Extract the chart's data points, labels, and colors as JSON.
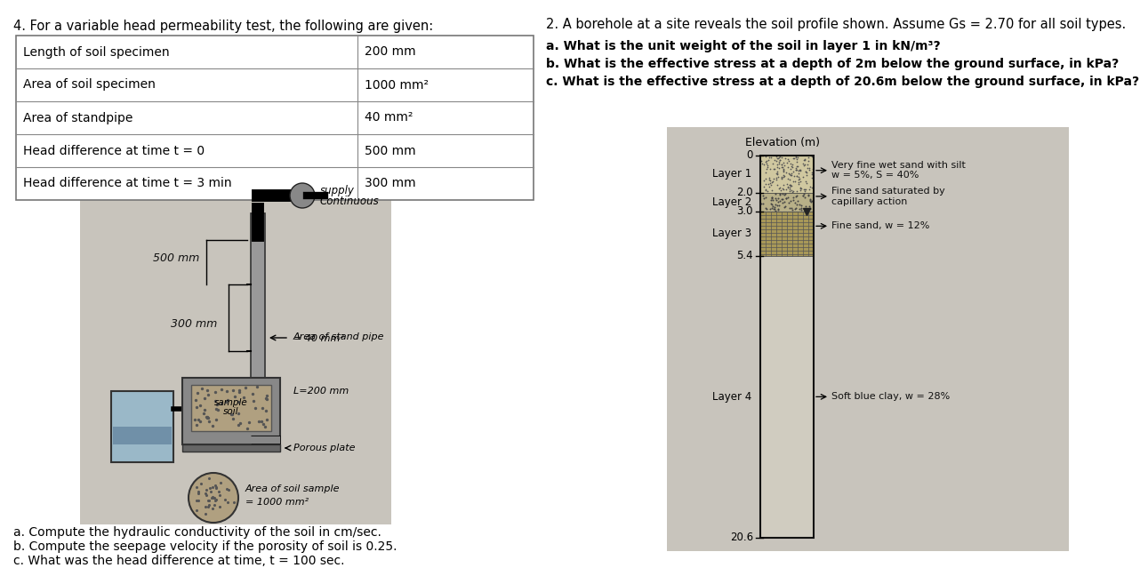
{
  "title_left": "4. For a variable head permeability test, the following are given:",
  "title_right": "2. A borehole at a site reveals the soil profile shown. Assume Gs = 2.70 for all soil types.",
  "table_rows": [
    [
      "Length of soil specimen",
      "200 mm"
    ],
    [
      "Area of soil specimen",
      "1000 mm²"
    ],
    [
      "Area of standpipe",
      "40 mm²"
    ],
    [
      "Head difference at time t = 0",
      "500 mm"
    ],
    [
      "Head difference at time t = 3 min",
      "300 mm"
    ]
  ],
  "questions_right": [
    "a. What is the unit weight of the soil in layer 1 in kN/m³?",
    "b. What is the effective stress at a depth of 2m below the ground surface, in kPa?",
    "c. What is the effective stress at a depth of 20.6m below the ground surface, in kPa?"
  ],
  "questions_left_bottom": [
    "a. Compute the hydraulic conductivity of the soil in cm/sec.",
    "b. Compute the seepage velocity if the porosity of soil is 0.25.",
    "c. What was the head difference at time, t = 100 sec."
  ],
  "elevation_ticks": [
    0.0,
    2.0,
    3.0,
    5.4,
    20.6
  ],
  "tick_labels": [
    "0",
    "2.0",
    "3.0",
    "5.4",
    "20.6"
  ],
  "bg_color_diagram": "#d8d0c8",
  "bg_color_soil": "#c8c0b8"
}
